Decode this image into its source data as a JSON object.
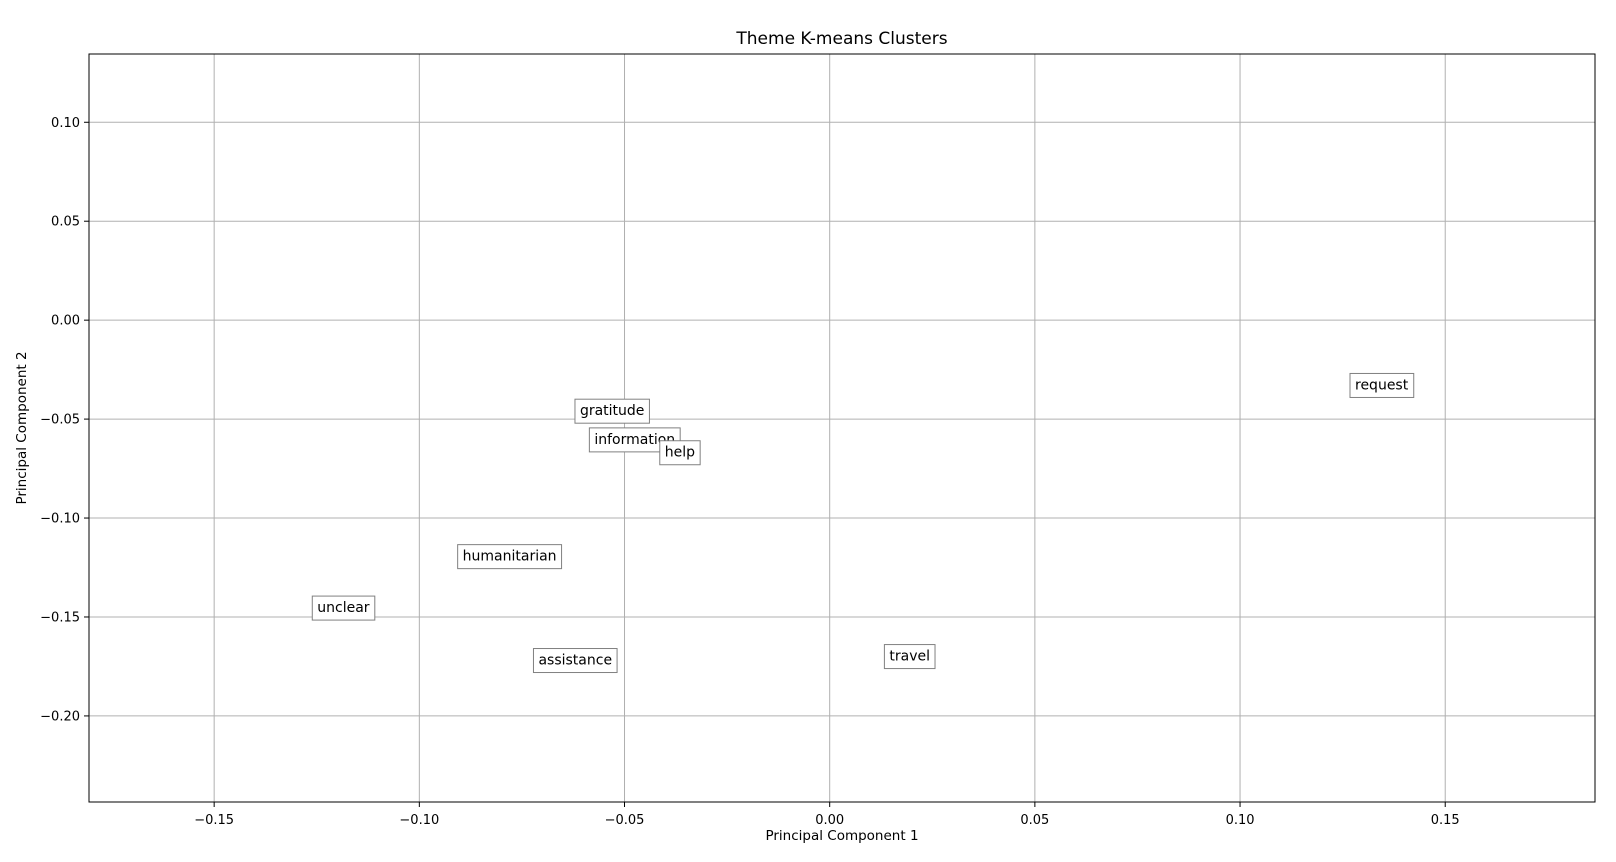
{
  "chart_data": {
    "type": "scatter",
    "title": "Theme K-means Clusters",
    "xlabel": "Principal Component 1",
    "ylabel": "Principal Component 2",
    "xlim": [
      -0.1805,
      0.1865
    ],
    "ylim": [
      -0.2435,
      0.1345
    ],
    "grid": true,
    "legend": "none",
    "xticks": [
      {
        "value": -0.15,
        "label": "−0.15"
      },
      {
        "value": -0.1,
        "label": "−0.10"
      },
      {
        "value": -0.05,
        "label": "−0.05"
      },
      {
        "value": 0.0,
        "label": "0.00"
      },
      {
        "value": 0.05,
        "label": "0.05"
      },
      {
        "value": 0.1,
        "label": "0.10"
      },
      {
        "value": 0.15,
        "label": "0.15"
      }
    ],
    "yticks": [
      {
        "value": 0.1,
        "label": "0.10"
      },
      {
        "value": 0.05,
        "label": "0.05"
      },
      {
        "value": 0.0,
        "label": "0.00"
      },
      {
        "value": -0.05,
        "label": "−0.05"
      },
      {
        "value": -0.1,
        "label": "−0.10"
      },
      {
        "value": -0.15,
        "label": "−0.15"
      },
      {
        "value": -0.2,
        "label": "−0.20"
      }
    ],
    "points": [
      {
        "label": "request",
        "x": 0.1345,
        "y": -0.0325
      },
      {
        "label": "gratitude",
        "x": -0.053,
        "y": -0.0455
      },
      {
        "label": "information",
        "x": -0.0475,
        "y": -0.06
      },
      {
        "label": "help",
        "x": -0.0365,
        "y": -0.0665
      },
      {
        "label": "humanitarian",
        "x": -0.078,
        "y": -0.119
      },
      {
        "label": "unclear",
        "x": -0.1185,
        "y": -0.145
      },
      {
        "label": "assistance",
        "x": -0.062,
        "y": -0.1715
      },
      {
        "label": "travel",
        "x": 0.0195,
        "y": -0.1695
      }
    ],
    "colors": {
      "grid": "#b0b0b0",
      "axes": "#000000",
      "label_box_edge": "#808080",
      "label_box_fill": "#ffffff"
    }
  }
}
